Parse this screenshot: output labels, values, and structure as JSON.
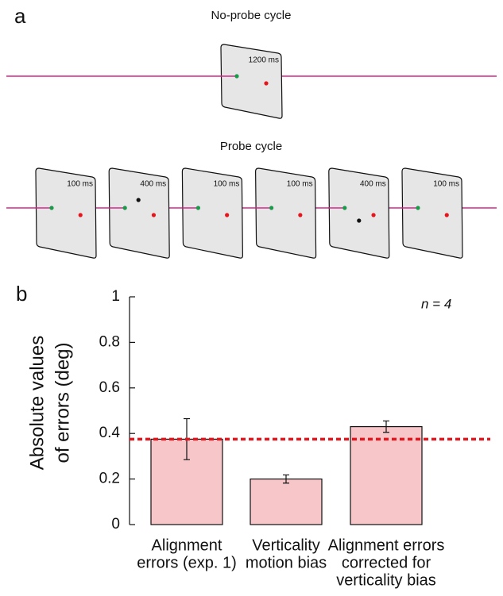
{
  "panel_a": {
    "label": "a",
    "no_probe_title": "No-probe cycle",
    "no_probe_duration": "1200 ms",
    "probe_title": "Probe cycle",
    "probe_durations": [
      "100 ms",
      "400 ms",
      "100 ms",
      "100 ms",
      "400 ms",
      "100 ms"
    ]
  },
  "panel_b_label": "b",
  "chart_data": {
    "type": "bar",
    "y_label": [
      "Absolute values",
      "of errors (deg)"
    ],
    "categories": [
      [
        "Alignment",
        "errors (exp. 1)"
      ],
      [
        "Verticality",
        "motion bias"
      ],
      [
        "Alignment errors",
        "corrected for",
        "verticality bias"
      ]
    ],
    "values": [
      0.375,
      0.2,
      0.43
    ],
    "errors": [
      0.09,
      0.018,
      0.025
    ],
    "color": "#f7c6c9",
    "reference_line": 0.375,
    "reference_color": "#e8141c",
    "annotation": "n = 4",
    "ylim": [
      0,
      1
    ],
    "yticks": [
      0,
      0.2,
      0.4,
      0.6,
      0.8,
      1
    ]
  }
}
